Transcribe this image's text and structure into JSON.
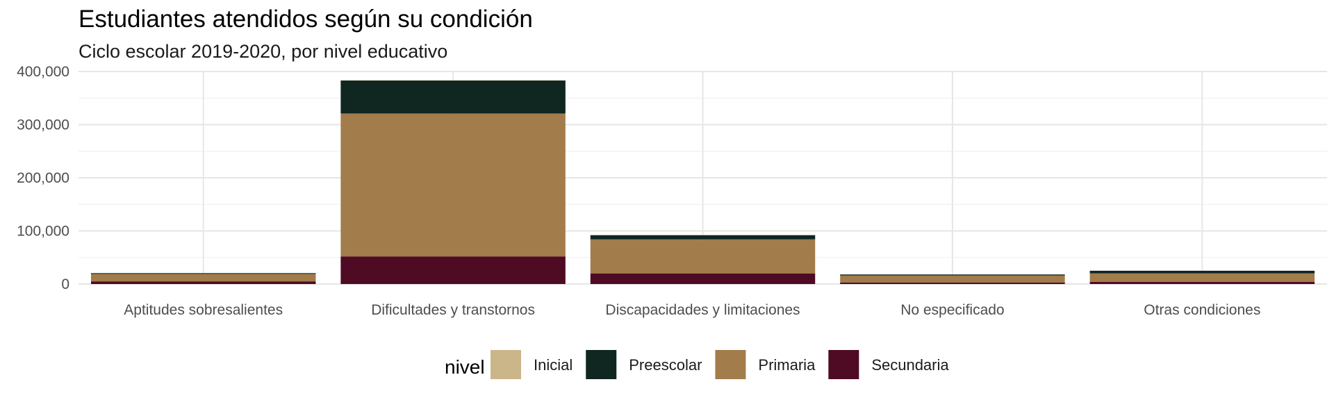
{
  "chart_data": {
    "type": "bar",
    "stacked": true,
    "title": "Estudiantes atendidos según su condición",
    "subtitle": "Ciclo escolar 2019-2020, por nivel educativo",
    "xlabel": "",
    "ylabel": "",
    "categories": [
      "Aptitudes sobresalientes",
      "Dificultades y transtornos",
      "Discapacidades y limitaciones",
      "No especificado",
      "Otras condiciones"
    ],
    "series": [
      {
        "name": "Secundaria",
        "color": "#4f0a24",
        "values": [
          5000,
          52000,
          20000,
          3000,
          4000
        ]
      },
      {
        "name": "Primaria",
        "color": "#a27c4b",
        "values": [
          14000,
          269000,
          64000,
          13000,
          16000
        ]
      },
      {
        "name": "Preescolar",
        "color": "#0f2621",
        "values": [
          1500,
          62000,
          8000,
          2000,
          5000
        ]
      },
      {
        "name": "Inicial",
        "color": "#cbb68a",
        "values": [
          200,
          500,
          300,
          100,
          200
        ]
      }
    ],
    "ylim": [
      0,
      400000
    ],
    "y_ticks": [
      0,
      100000,
      200000,
      300000,
      400000
    ],
    "y_tick_labels": [
      "0",
      "100,000",
      "200,000",
      "300,000",
      "400,000"
    ],
    "grid": true,
    "legend": {
      "title": "nivel",
      "position": "bottom",
      "entries": [
        {
          "label": "Inicial",
          "color": "#cbb68a"
        },
        {
          "label": "Preescolar",
          "color": "#0f2621"
        },
        {
          "label": "Primaria",
          "color": "#a27c4b"
        },
        {
          "label": "Secundaria",
          "color": "#4f0a24"
        }
      ]
    }
  }
}
